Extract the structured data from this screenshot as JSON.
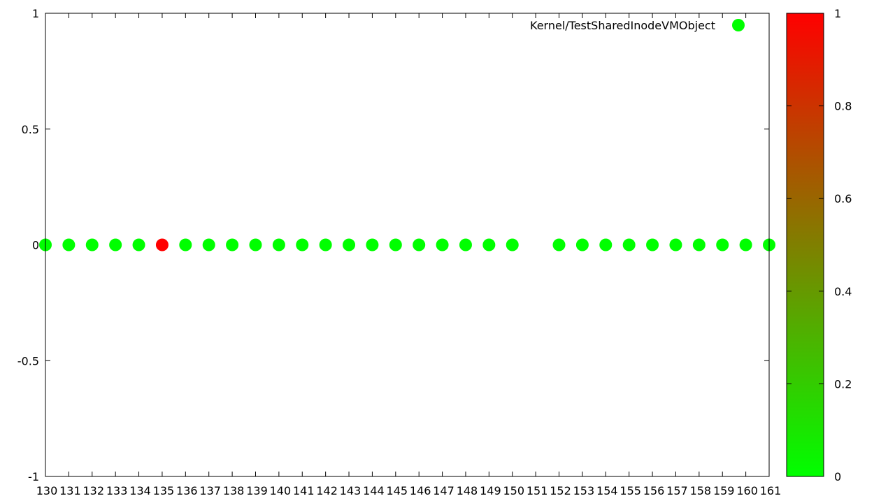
{
  "chart_data": {
    "type": "scatter",
    "x": [
      130,
      131,
      132,
      133,
      134,
      135,
      136,
      137,
      138,
      139,
      140,
      141,
      142,
      143,
      144,
      145,
      146,
      147,
      148,
      149,
      150,
      152,
      153,
      154,
      155,
      156,
      157,
      158,
      159,
      160,
      161
    ],
    "series": [
      {
        "name": "Kernel/TestSharedInodeVMObject",
        "y": [
          0,
          0,
          0,
          0,
          0,
          0,
          0,
          0,
          0,
          0,
          0,
          0,
          0,
          0,
          0,
          0,
          0,
          0,
          0,
          0,
          0,
          0,
          0,
          0,
          0,
          0,
          0,
          0,
          0,
          0,
          0
        ],
        "color_values": [
          0,
          0,
          0,
          0,
          0,
          1,
          0,
          0,
          0,
          0,
          0,
          0,
          0,
          0,
          0,
          0,
          0,
          0,
          0,
          0,
          0,
          0,
          0,
          0,
          0,
          0,
          0,
          0,
          0,
          0,
          0
        ]
      }
    ],
    "xlim": [
      130,
      161
    ],
    "ylim": [
      -1,
      1
    ],
    "x_ticks": [
      "130",
      "131",
      "132",
      "133",
      "134",
      "135",
      "136",
      "137",
      "138",
      "139",
      "140",
      "141",
      "142",
      "143",
      "144",
      "145",
      "146",
      "147",
      "148",
      "149",
      "150",
      "151",
      "152",
      "153",
      "154",
      "155",
      "156",
      "157",
      "158",
      "159",
      "160",
      "161"
    ],
    "y_ticks": [
      "-1",
      "-0.5",
      "0",
      "0.5",
      "1"
    ],
    "legend_position": "top-right",
    "grid": false,
    "colorbar": {
      "range": [
        0,
        1
      ],
      "ticks": [
        "0",
        "0.2",
        "0.4",
        "0.6",
        "0.8",
        "1"
      ],
      "low_color": "#00ff00",
      "high_color": "#ff0000"
    }
  }
}
